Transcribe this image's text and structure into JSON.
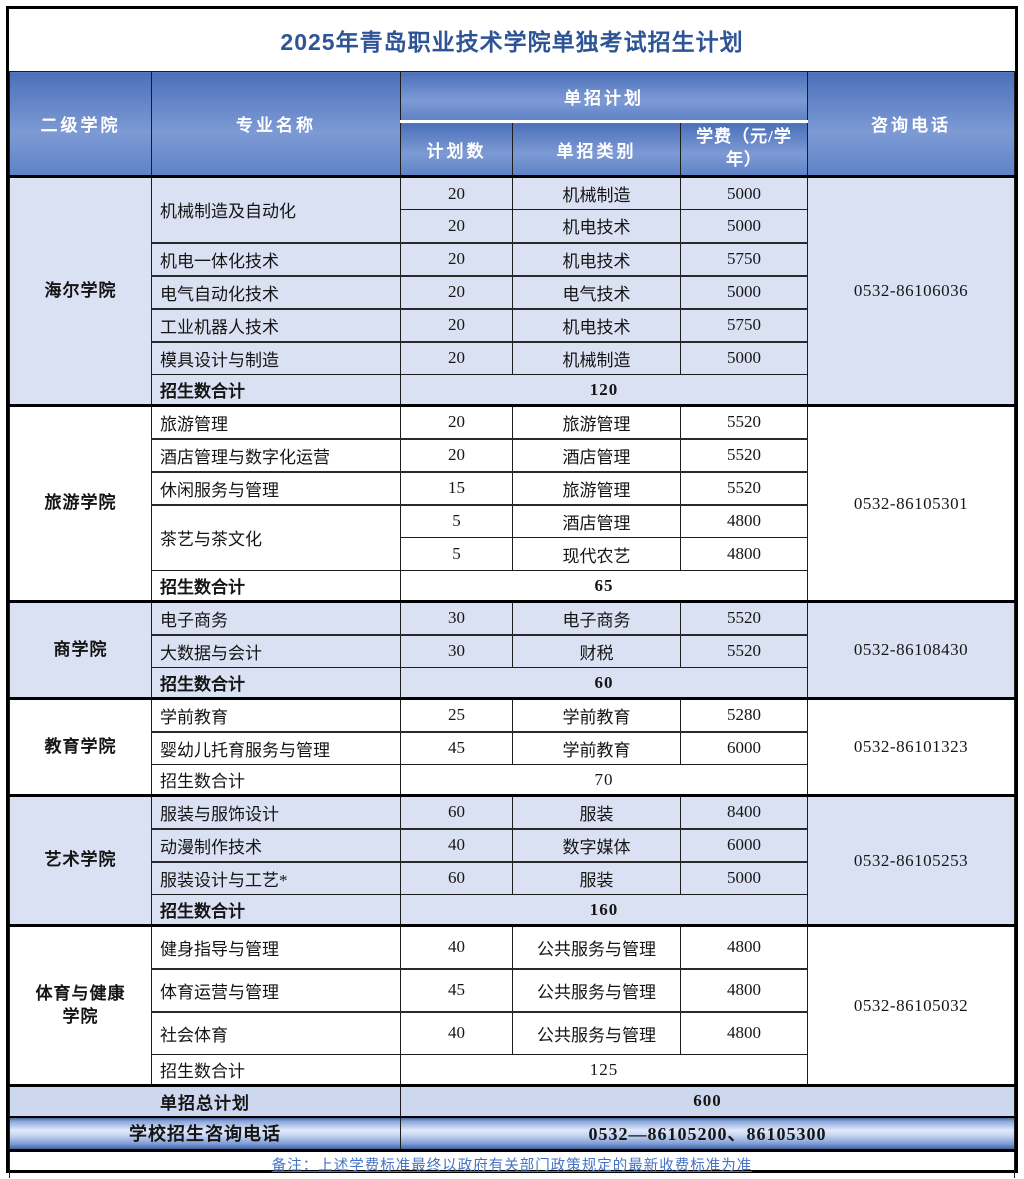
{
  "title": "2025年青岛职业技术学院单独考试招生计划",
  "header": {
    "college": "二级学院",
    "major": "专业名称",
    "plan_group": "单招计划",
    "plan_count": "计划数",
    "category": "单招类别",
    "tuition": "学费（元/学年）",
    "phone": "咨询电话"
  },
  "sections": [
    {
      "college": "海尔学院",
      "phone": "0532-86106036",
      "shaded": true,
      "total_label": "招生数合计",
      "total": "120",
      "total_bold": true,
      "majors": [
        {
          "name": "机械制造及自动化",
          "rows": [
            [
              "20",
              "机械制造",
              "5000"
            ],
            [
              "20",
              "机电技术",
              "5000"
            ]
          ]
        },
        {
          "name": "机电一体化技术",
          "rows": [
            [
              "20",
              "机电技术",
              "5750"
            ]
          ]
        },
        {
          "name": "电气自动化技术",
          "rows": [
            [
              "20",
              "电气技术",
              "5000"
            ]
          ]
        },
        {
          "name": "工业机器人技术",
          "rows": [
            [
              "20",
              "机电技术",
              "5750"
            ]
          ]
        },
        {
          "name": "模具设计与制造",
          "rows": [
            [
              "20",
              "机械制造",
              "5000"
            ]
          ]
        }
      ]
    },
    {
      "college": "旅游学院",
      "phone": "0532-86105301",
      "shaded": false,
      "total_label": "招生数合计",
      "total": "65",
      "total_bold": true,
      "majors": [
        {
          "name": "旅游管理",
          "rows": [
            [
              "20",
              "旅游管理",
              "5520"
            ]
          ]
        },
        {
          "name": "酒店管理与数字化运营",
          "rows": [
            [
              "20",
              "酒店管理",
              "5520"
            ]
          ]
        },
        {
          "name": "休闲服务与管理",
          "rows": [
            [
              "15",
              "旅游管理",
              "5520"
            ]
          ]
        },
        {
          "name": "茶艺与茶文化",
          "rows": [
            [
              "5",
              "酒店管理",
              "4800"
            ],
            [
              "5",
              "现代农艺",
              "4800"
            ]
          ]
        }
      ]
    },
    {
      "college": "商学院",
      "phone": "0532-86108430",
      "shaded": true,
      "total_label": "招生数合计",
      "total": "60",
      "total_bold": true,
      "majors": [
        {
          "name": "电子商务",
          "rows": [
            [
              "30",
              "电子商务",
              "5520"
            ]
          ]
        },
        {
          "name": "大数据与会计",
          "rows": [
            [
              "30",
              "财税",
              "5520"
            ]
          ]
        }
      ]
    },
    {
      "college": "教育学院",
      "phone": "0532-86101323",
      "shaded": false,
      "total_label": "招生数合计",
      "total": "70",
      "total_bold": false,
      "majors": [
        {
          "name": "学前教育",
          "rows": [
            [
              "25",
              "学前教育",
              "5280"
            ]
          ]
        },
        {
          "name": "婴幼儿托育服务与管理",
          "rows": [
            [
              "45",
              "学前教育",
              "6000"
            ]
          ]
        }
      ]
    },
    {
      "college": "艺术学院",
      "phone": "0532-86105253",
      "shaded": true,
      "total_label": "招生数合计",
      "total": "160",
      "total_bold": true,
      "majors": [
        {
          "name": "服装与服饰设计",
          "rows": [
            [
              "60",
              "服装",
              "8400"
            ]
          ]
        },
        {
          "name": "动漫制作技术",
          "rows": [
            [
              "40",
              "数字媒体",
              "6000"
            ]
          ]
        },
        {
          "name": "服装设计与工艺*",
          "rows": [
            [
              "60",
              "服装",
              "5000"
            ]
          ]
        }
      ]
    },
    {
      "college": "体育与健康学院",
      "phone": "0532-86105032",
      "shaded": false,
      "tall": true,
      "total_label": "招生数合计",
      "total": "125",
      "total_bold": false,
      "majors": [
        {
          "name": "健身指导与管理",
          "rows": [
            [
              "40",
              "公共服务与管理",
              "4800"
            ]
          ]
        },
        {
          "name": "体育运营与管理",
          "rows": [
            [
              "45",
              "公共服务与管理",
              "4800"
            ]
          ]
        },
        {
          "name": "社会体育",
          "rows": [
            [
              "40",
              "公共服务与管理",
              "4800"
            ]
          ]
        }
      ]
    }
  ],
  "footer": {
    "total_label": "单招总计划",
    "total_value": "600",
    "phone_label": "学校招生咨询电话",
    "phone_value": "0532—86105200、86105300"
  },
  "note": "备注：上述学费标准最终以政府有关部门政策规定的最新收费标准为准",
  "colors": {
    "title_text": "#2e5496",
    "header_gradient_top": "#4b70ba",
    "header_gradient_bottom": "#5d82c6",
    "header_text": "#ffffff",
    "shaded_row": "#dae1f3",
    "grand_total_row": "#cdd7ee",
    "note_text": "#4472c4",
    "border": "#000000"
  }
}
